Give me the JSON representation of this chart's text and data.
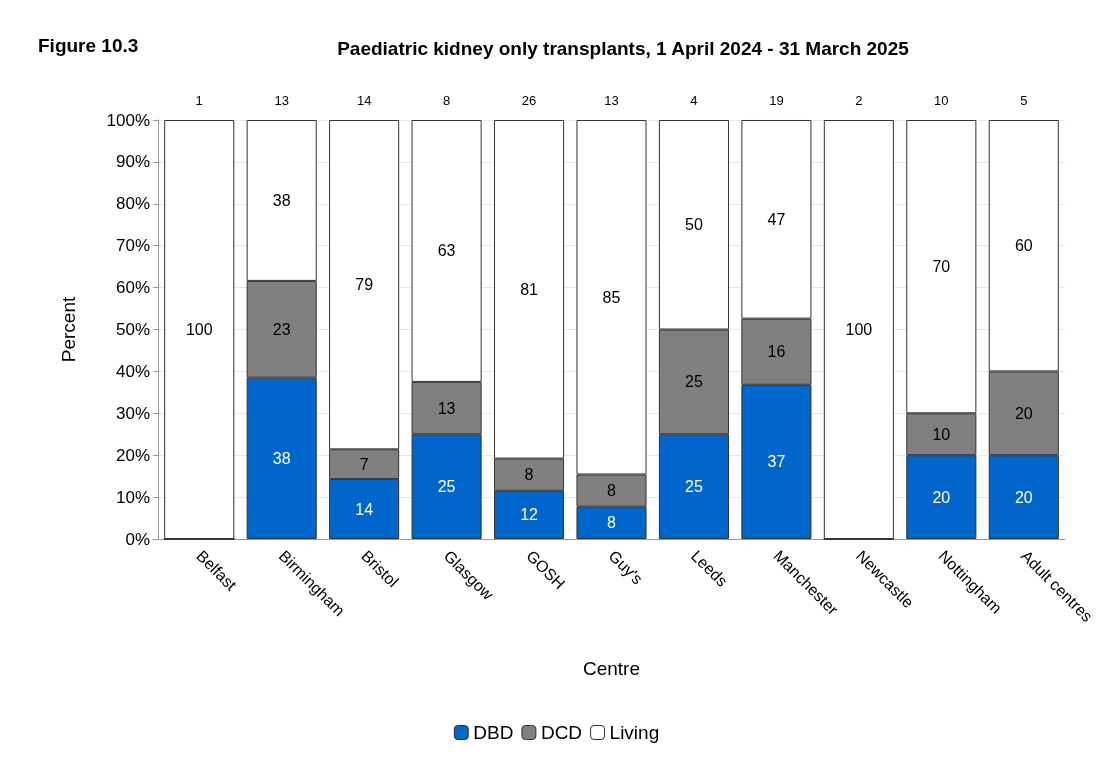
{
  "chart_data": {
    "type": "bar",
    "title": "Paediatric kidney only transplants, 1 April 2024 - 31 March 2025",
    "annotations": [
      "Figure 10.3",
      {
        "text": "1",
        "x": "Belfast",
        "y": 100
      },
      {
        "text": "13",
        "x": "Birmingham",
        "y": 100
      },
      {
        "text": "14",
        "x": "Bristol",
        "y": 100
      },
      {
        "text": "8",
        "x": "Glasgow",
        "y": 100
      },
      {
        "text": "26",
        "x": "GOSH",
        "y": 100
      },
      {
        "text": "13",
        "x": "Guy's",
        "y": 100
      },
      {
        "text": "4",
        "x": "Leeds",
        "y": 100
      },
      {
        "text": "19",
        "x": "Manchester",
        "y": 100
      },
      {
        "text": "2",
        "x": "Newcastle",
        "y": 100
      },
      {
        "text": "10",
        "x": "Nottingham",
        "y": 100
      },
      {
        "text": "5",
        "x": "Adult centres",
        "y": 100
      }
    ],
    "xlabel": "Centre",
    "ylabel": "Percent",
    "stacked": true,
    "categories": [
      "Belfast",
      "Birmingham",
      "Bristol",
      "Glasgow",
      "GOSH",
      "Guy's",
      "Leeds",
      "Manchester",
      "Newcastle",
      "Nottingham",
      "Adult centres"
    ],
    "series": [
      {
        "name": "DBD",
        "color": "#0066cc",
        "values": [
          0,
          38.5,
          14.3,
          25,
          11.5,
          7.7,
          25,
          36.8,
          0,
          20,
          20
        ],
        "value_labels": [
          null,
          "38",
          "14",
          "25",
          "12",
          "8",
          "25",
          "37",
          null,
          "20",
          "20"
        ]
      },
      {
        "name": "DCD",
        "color": "#808080",
        "values": [
          0,
          23.1,
          7.1,
          12.5,
          7.7,
          7.7,
          25,
          15.8,
          0,
          10,
          20
        ],
        "value_labels": [
          null,
          "23",
          "7",
          "13",
          "8",
          "8",
          "25",
          "16",
          null,
          "10",
          "20"
        ]
      },
      {
        "name": "Living",
        "color": "#ffffff",
        "values": [
          100,
          38.4,
          78.6,
          62.5,
          80.8,
          84.6,
          50,
          47.4,
          100,
          70,
          60
        ],
        "value_labels": [
          "100",
          "38",
          "79",
          "63",
          "81",
          "85",
          "50",
          "47",
          "100",
          "70",
          "60"
        ]
      }
    ],
    "ylim": [
      0,
      100
    ],
    "yticks": [
      {
        "value": 0,
        "label": "0%"
      },
      {
        "value": 10,
        "label": "10%"
      },
      {
        "value": 20,
        "label": "20%"
      },
      {
        "value": 30,
        "label": "30%"
      },
      {
        "value": 40,
        "label": "40%"
      },
      {
        "value": 50,
        "label": "50%"
      },
      {
        "value": 60,
        "label": "60%"
      },
      {
        "value": 70,
        "label": "70%"
      },
      {
        "value": 80,
        "label": "80%"
      },
      {
        "value": 90,
        "label": "90%"
      },
      {
        "value": 100,
        "label": "100%"
      }
    ],
    "grid": "y",
    "legend": "bottom"
  }
}
